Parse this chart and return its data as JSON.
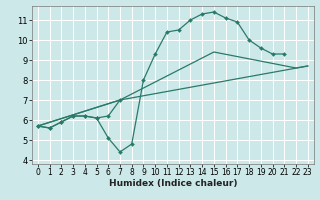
{
  "xlabel": "Humidex (Indice chaleur)",
  "bg_color": "#cce8e8",
  "line_color": "#2a7a6a",
  "grid_color": "#ffffff",
  "xlim": [
    -0.5,
    23.5
  ],
  "ylim": [
    3.8,
    11.7
  ],
  "xticks": [
    0,
    1,
    2,
    3,
    4,
    5,
    6,
    7,
    8,
    9,
    10,
    11,
    12,
    13,
    14,
    15,
    16,
    17,
    18,
    19,
    20,
    21,
    22,
    23
  ],
  "yticks": [
    4,
    5,
    6,
    7,
    8,
    9,
    10,
    11
  ],
  "line1_x": [
    0,
    1,
    2,
    3,
    4,
    5,
    6,
    7,
    8,
    9,
    10,
    11,
    12,
    13,
    14,
    15,
    16,
    17,
    18,
    19,
    20,
    21
  ],
  "line1_y": [
    5.7,
    5.6,
    5.9,
    6.2,
    6.2,
    6.1,
    5.1,
    4.4,
    4.8,
    8.0,
    9.3,
    10.4,
    10.5,
    11.0,
    11.3,
    11.4,
    11.1,
    10.9,
    10.0,
    9.6,
    9.3,
    9.3
  ],
  "line2_x": [
    0,
    1,
    2,
    3,
    4,
    5,
    6,
    7
  ],
  "line2_y": [
    5.7,
    5.6,
    5.9,
    6.2,
    6.2,
    6.1,
    6.2,
    7.0
  ],
  "line3_x": [
    0,
    7,
    15,
    22,
    23
  ],
  "line3_y": [
    5.7,
    7.0,
    9.4,
    8.6,
    8.7
  ],
  "line4_x": [
    0,
    7,
    23
  ],
  "line4_y": [
    5.7,
    7.0,
    8.7
  ]
}
